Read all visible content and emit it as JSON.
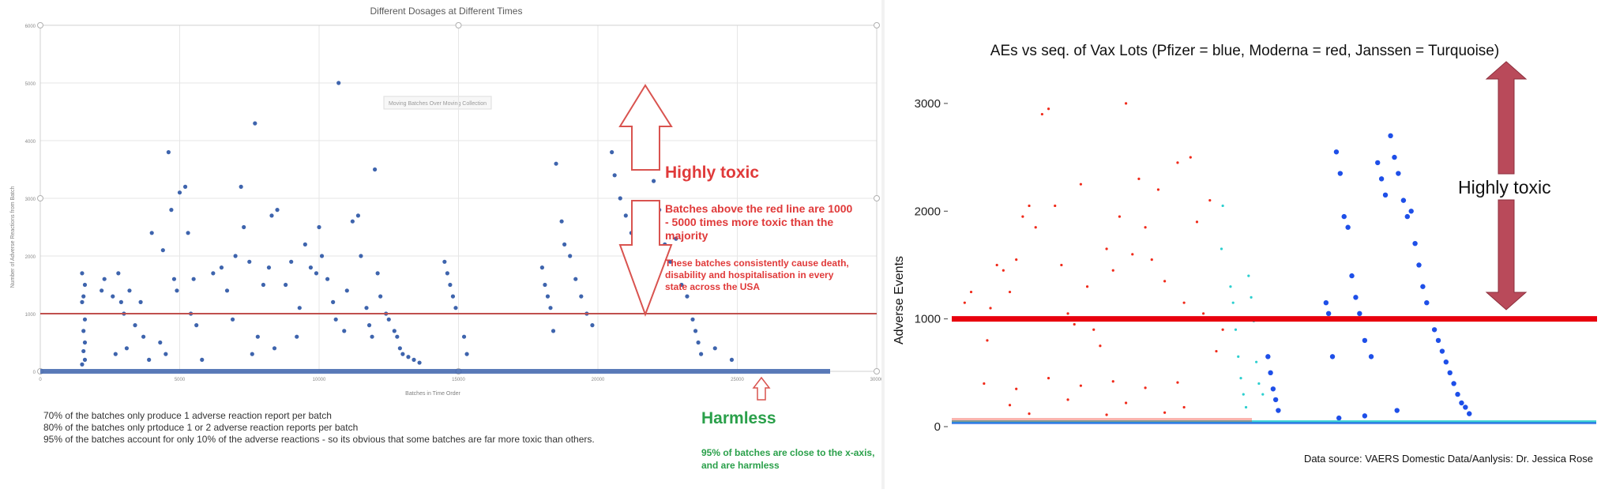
{
  "left_chart": {
    "title": "Different Dosages at Different Times",
    "xlabel": "Batches in Time Order",
    "ylabel": "Number of Adverse Reactions from Batch",
    "legend_text": "Moving Batches Over Moving Collection",
    "x_ticks": [
      "0",
      "5000",
      "10000",
      "15000",
      "20000",
      "25000",
      "30000"
    ],
    "y_ticks": [
      "0",
      "1000",
      "2000",
      "3000",
      "4000",
      "5000",
      "6000"
    ],
    "threshold_value": 1000,
    "annotations": {
      "highly_toxic": "Highly toxic",
      "batches_above": "Batches above the red line are 1000 - 5000 times more toxic than the majority",
      "consistently": "These batches consistently cause death, disability and hospitalisation in every state across the USA",
      "harmless": "Harmless",
      "harmless_note": "95% of batches are close to the x-axis, and are harmless",
      "stats": [
        "70% of the batches only produce 1 adverse reaction report per batch",
        "80% of the batches only prtoduce 1 or 2 adverse reaction reports per batch",
        "95% of the batches account for only 10% of the adverse reactions - so its obvious that some batches are far more toxic than others."
      ]
    },
    "colors": {
      "points": "#3e64ad",
      "line": "#c0504d",
      "toxic_text": "#e03a3a",
      "harmless_text": "#2aa04a"
    }
  },
  "right_chart": {
    "title": "AEs vs seq. of Vax Lots (Pfizer = blue, Moderna = red, Janssen = Turquoise)",
    "ylabel": "Adverse Events",
    "y_ticks": [
      "0",
      "1000",
      "2000",
      "3000"
    ],
    "threshold_value": 1000,
    "annotation": "Highly toxic",
    "source": "Data source: VAERS Domestic Data/Aanlysis: Dr. Jessica Rose",
    "colors": {
      "pfizer": "#1e4fe8",
      "moderna": "#f02a1a",
      "janssen": "#2ccfcf",
      "line": "#e8000d",
      "arrow": "#b94a5a"
    }
  },
  "chart_data": [
    {
      "type": "scatter",
      "title": "Different Dosages at Different Times",
      "xlabel": "Batches in Time Order",
      "ylabel": "Number of Adverse Reactions from Batch",
      "xlim": [
        0,
        30000
      ],
      "ylim": [
        0,
        6000
      ],
      "grid": true,
      "reference_line_y": 1000,
      "series": [
        {
          "points": [
            [
              1500,
              1700
            ],
            [
              1600,
              1500
            ],
            [
              1550,
              1300
            ],
            [
              1500,
              1200
            ],
            [
              1600,
              900
            ],
            [
              1550,
              700
            ],
            [
              1600,
              500
            ],
            [
              1550,
              350
            ],
            [
              1600,
              200
            ],
            [
              1500,
              120
            ],
            [
              2200,
              1400
            ],
            [
              2300,
              1600
            ],
            [
              2600,
              1300
            ],
            [
              2800,
              1700
            ],
            [
              2900,
              1200
            ],
            [
              3000,
              1000
            ],
            [
              3200,
              1400
            ],
            [
              3400,
              800
            ],
            [
              3600,
              1200
            ],
            [
              3700,
              600
            ],
            [
              3100,
              400
            ],
            [
              2700,
              300
            ],
            [
              3900,
              200
            ],
            [
              4000,
              2400
            ],
            [
              4400,
              2100
            ],
            [
              4600,
              3800
            ],
            [
              4700,
              2800
            ],
            [
              4800,
              1600
            ],
            [
              4900,
              1400
            ],
            [
              5000,
              3100
            ],
            [
              5200,
              3200
            ],
            [
              5300,
              2400
            ],
            [
              5500,
              1600
            ],
            [
              5400,
              1000
            ],
            [
              5600,
              800
            ],
            [
              4300,
              500
            ],
            [
              4500,
              300
            ],
            [
              5800,
              200
            ],
            [
              6200,
              1700
            ],
            [
              6500,
              1800
            ],
            [
              6700,
              1400
            ],
            [
              7000,
              2000
            ],
            [
              7200,
              3200
            ],
            [
              7300,
              2500
            ],
            [
              7500,
              1900
            ],
            [
              7700,
              4300
            ],
            [
              7800,
              600
            ],
            [
              8000,
              1500
            ],
            [
              8200,
              1800
            ],
            [
              8300,
              2700
            ],
            [
              8500,
              2800
            ],
            [
              8800,
              1500
            ],
            [
              9000,
              1900
            ],
            [
              9200,
              600
            ],
            [
              7600,
              300
            ],
            [
              8400,
              400
            ],
            [
              6900,
              900
            ],
            [
              9300,
              1100
            ],
            [
              9500,
              2200
            ],
            [
              9700,
              1800
            ],
            [
              9900,
              1700
            ],
            [
              10000,
              2500
            ],
            [
              10100,
              2000
            ],
            [
              10300,
              1600
            ],
            [
              10500,
              1200
            ],
            [
              10600,
              900
            ],
            [
              10700,
              5000
            ],
            [
              10900,
              700
            ],
            [
              11200,
              2600
            ],
            [
              11400,
              2700
            ],
            [
              11500,
              2000
            ],
            [
              11000,
              1400
            ],
            [
              11700,
              1100
            ],
            [
              11800,
              800
            ],
            [
              11900,
              600
            ],
            [
              12000,
              3500
            ],
            [
              12100,
              1700
            ],
            [
              12200,
              1300
            ],
            [
              12400,
              1000
            ],
            [
              12500,
              900
            ],
            [
              12700,
              700
            ],
            [
              12800,
              600
            ],
            [
              12900,
              400
            ],
            [
              13000,
              300
            ],
            [
              13200,
              250
            ],
            [
              13400,
              200
            ],
            [
              13600,
              150
            ],
            [
              14500,
              1900
            ],
            [
              14600,
              1700
            ],
            [
              14700,
              1500
            ],
            [
              14800,
              1300
            ],
            [
              14900,
              1100
            ],
            [
              15200,
              600
            ],
            [
              15300,
              300
            ],
            [
              18000,
              1800
            ],
            [
              18100,
              1500
            ],
            [
              18200,
              1300
            ],
            [
              18300,
              1100
            ],
            [
              18400,
              700
            ],
            [
              18500,
              3600
            ],
            [
              18700,
              2600
            ],
            [
              18800,
              2200
            ],
            [
              19000,
              2000
            ],
            [
              19200,
              1600
            ],
            [
              19400,
              1300
            ],
            [
              19600,
              1000
            ],
            [
              19800,
              800
            ],
            [
              20500,
              3800
            ],
            [
              20600,
              3400
            ],
            [
              20800,
              3000
            ],
            [
              21000,
              2700
            ],
            [
              21200,
              2400
            ],
            [
              21400,
              2200
            ],
            [
              21600,
              2000
            ],
            [
              22000,
              3300
            ],
            [
              22200,
              2800
            ],
            [
              22400,
              2200
            ],
            [
              22600,
              1900
            ],
            [
              22800,
              2300
            ],
            [
              23000,
              1500
            ],
            [
              23200,
              1300
            ],
            [
              23400,
              900
            ],
            [
              23500,
              700
            ],
            [
              23600,
              500
            ],
            [
              23700,
              300
            ],
            [
              24200,
              400
            ],
            [
              24800,
              200
            ]
          ]
        }
      ]
    },
    {
      "type": "scatter",
      "title": "AEs vs seq. of Vax Lots (Pfizer = blue, Moderna = red, Janssen = Turquoise)",
      "xlabel": "",
      "ylabel": "Adverse Events",
      "xlim": [
        0,
        1000
      ],
      "ylim": [
        0,
        3000
      ],
      "reference_line_y": 1000,
      "series": [
        {
          "name": "Moderna",
          "points": [
            [
              20,
              1150
            ],
            [
              30,
              1250
            ],
            [
              40,
              1000
            ],
            [
              55,
              800
            ],
            [
              60,
              1100
            ],
            [
              70,
              1500
            ],
            [
              80,
              1450
            ],
            [
              90,
              1250
            ],
            [
              100,
              1550
            ],
            [
              110,
              1950
            ],
            [
              120,
              2050
            ],
            [
              130,
              1850
            ],
            [
              140,
              2900
            ],
            [
              150,
              2950
            ],
            [
              160,
              2050
            ],
            [
              170,
              1500
            ],
            [
              180,
              1050
            ],
            [
              190,
              950
            ],
            [
              200,
              2250
            ],
            [
              210,
              1300
            ],
            [
              220,
              900
            ],
            [
              230,
              750
            ],
            [
              240,
              1650
            ],
            [
              250,
              1450
            ],
            [
              260,
              1950
            ],
            [
              270,
              3000
            ],
            [
              280,
              1600
            ],
            [
              290,
              2300
            ],
            [
              300,
              1850
            ],
            [
              310,
              1550
            ],
            [
              320,
              2200
            ],
            [
              330,
              1350
            ],
            [
              340,
              1000
            ],
            [
              350,
              2450
            ],
            [
              360,
              1150
            ],
            [
              370,
              2500
            ],
            [
              380,
              1900
            ],
            [
              390,
              1050
            ],
            [
              400,
              2100
            ],
            [
              410,
              700
            ],
            [
              420,
              900
            ],
            [
              50,
              400
            ],
            [
              100,
              350
            ],
            [
              150,
              450
            ],
            [
              200,
              380
            ],
            [
              250,
              420
            ],
            [
              300,
              360
            ],
            [
              350,
              410
            ],
            [
              90,
              200
            ],
            [
              180,
              250
            ],
            [
              270,
              220
            ],
            [
              360,
              180
            ],
            [
              120,
              120
            ],
            [
              240,
              110
            ],
            [
              330,
              130
            ]
          ]
        },
        {
          "name": "Janssen",
          "points": [
            [
              432,
              1300
            ],
            [
              436,
              1150
            ],
            [
              440,
              900
            ],
            [
              444,
              650
            ],
            [
              448,
              450
            ],
            [
              452,
              300
            ],
            [
              456,
              180
            ],
            [
              460,
              1400
            ],
            [
              464,
              1200
            ],
            [
              468,
              980
            ],
            [
              472,
              600
            ],
            [
              476,
              400
            ],
            [
              482,
              300
            ],
            [
              418,
              1650
            ],
            [
              420,
              2050
            ]
          ]
        },
        {
          "name": "Pfizer",
          "points": [
            [
              490,
              650
            ],
            [
              494,
              500
            ],
            [
              498,
              350
            ],
            [
              502,
              250
            ],
            [
              506,
              150
            ],
            [
              580,
              1150
            ],
            [
              584,
              1050
            ],
            [
              590,
              650
            ],
            [
              596,
              2550
            ],
            [
              602,
              2350
            ],
            [
              608,
              1950
            ],
            [
              614,
              1850
            ],
            [
              620,
              1400
            ],
            [
              626,
              1200
            ],
            [
              632,
              1050
            ],
            [
              640,
              800
            ],
            [
              650,
              650
            ],
            [
              660,
              2450
            ],
            [
              666,
              2300
            ],
            [
              672,
              2150
            ],
            [
              680,
              2700
            ],
            [
              686,
              2500
            ],
            [
              692,
              2350
            ],
            [
              700,
              2100
            ],
            [
              706,
              1950
            ],
            [
              712,
              2000
            ],
            [
              718,
              1700
            ],
            [
              724,
              1500
            ],
            [
              730,
              1300
            ],
            [
              736,
              1150
            ],
            [
              742,
              1000
            ],
            [
              748,
              900
            ],
            [
              754,
              800
            ],
            [
              760,
              700
            ],
            [
              766,
              600
            ],
            [
              772,
              500
            ],
            [
              778,
              400
            ],
            [
              784,
              300
            ],
            [
              790,
              220
            ],
            [
              796,
              180
            ],
            [
              802,
              120
            ],
            [
              690,
              150
            ],
            [
              640,
              100
            ],
            [
              600,
              80
            ]
          ]
        }
      ]
    }
  ]
}
